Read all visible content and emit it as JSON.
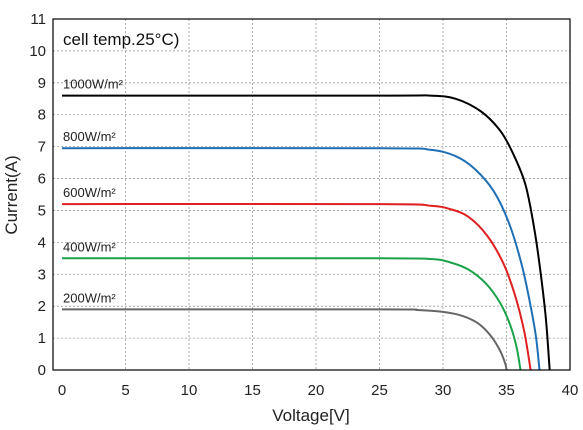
{
  "chart_data": {
    "type": "line",
    "annotation": "cell temp.25°C)",
    "xlabel": "Voltage[V]",
    "ylabel": "Current(A)",
    "xlim": [
      0,
      40
    ],
    "ylim": [
      0,
      11
    ],
    "x_ticks": [
      "0",
      "5",
      "10",
      "15",
      "20",
      "25",
      "30",
      "35",
      "40"
    ],
    "y_ticks": [
      "0",
      "1",
      "2",
      "3",
      "4",
      "5",
      "6",
      "7",
      "8",
      "9",
      "10",
      "11"
    ],
    "grid": true,
    "series": [
      {
        "name": "1000W/m²",
        "color": "#000000",
        "points": [
          [
            0,
            8.6
          ],
          [
            25,
            8.6
          ],
          [
            29,
            8.6
          ],
          [
            31,
            8.5
          ],
          [
            33,
            8.1
          ],
          [
            34.5,
            7.5
          ],
          [
            35.5,
            6.8
          ],
          [
            36.5,
            5.8
          ],
          [
            37.2,
            4.4
          ],
          [
            37.7,
            3.0
          ],
          [
            38.1,
            1.6
          ],
          [
            38.4,
            0
          ]
        ]
      },
      {
        "name": "800W/m²",
        "color": "#1f6fb5",
        "points": [
          [
            0,
            6.95
          ],
          [
            25,
            6.95
          ],
          [
            29,
            6.9
          ],
          [
            31,
            6.7
          ],
          [
            32.5,
            6.3
          ],
          [
            34,
            5.6
          ],
          [
            35.2,
            4.6
          ],
          [
            36.2,
            3.3
          ],
          [
            36.8,
            2.2
          ],
          [
            37.3,
            1.1
          ],
          [
            37.6,
            0
          ]
        ]
      },
      {
        "name": "600W/m²",
        "color": "#e02020",
        "points": [
          [
            0,
            5.2
          ],
          [
            25,
            5.2
          ],
          [
            29,
            5.15
          ],
          [
            30.5,
            5.05
          ],
          [
            32,
            4.8
          ],
          [
            33.5,
            4.2
          ],
          [
            34.8,
            3.3
          ],
          [
            35.7,
            2.3
          ],
          [
            36.4,
            1.2
          ],
          [
            36.9,
            0
          ]
        ]
      },
      {
        "name": "400W/m²",
        "color": "#1aa24a",
        "points": [
          [
            0,
            3.5
          ],
          [
            25,
            3.5
          ],
          [
            29,
            3.48
          ],
          [
            30.5,
            3.38
          ],
          [
            32,
            3.15
          ],
          [
            33.4,
            2.7
          ],
          [
            34.5,
            2.1
          ],
          [
            35.3,
            1.4
          ],
          [
            35.8,
            0.7
          ],
          [
            36.1,
            0
          ]
        ]
      },
      {
        "name": "200W/m²",
        "color": "#666666",
        "points": [
          [
            0,
            1.9
          ],
          [
            25,
            1.9
          ],
          [
            28,
            1.88
          ],
          [
            30,
            1.82
          ],
          [
            31.5,
            1.7
          ],
          [
            32.8,
            1.45
          ],
          [
            33.8,
            1.05
          ],
          [
            34.5,
            0.6
          ],
          [
            34.9,
            0.2
          ],
          [
            35.0,
            0
          ]
        ]
      }
    ]
  }
}
